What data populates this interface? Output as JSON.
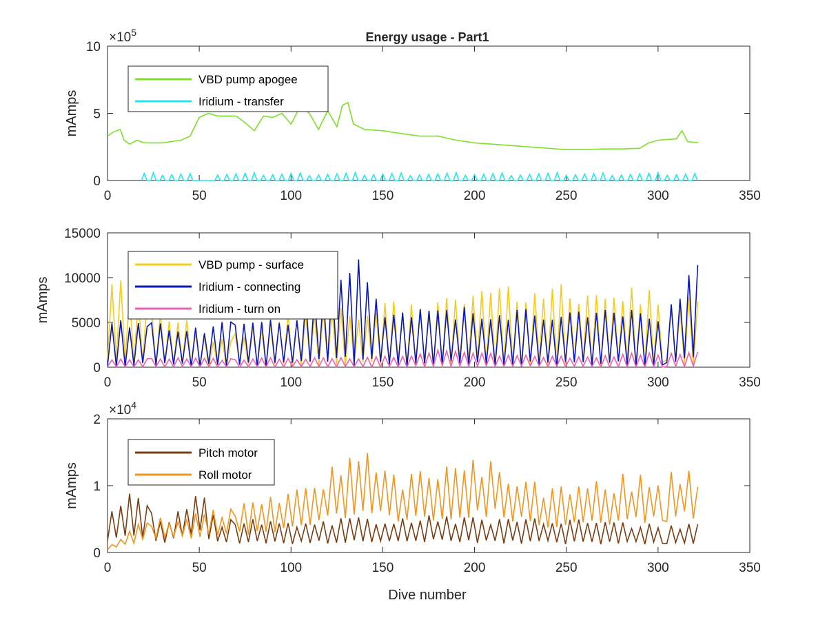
{
  "figure": {
    "title": "Energy usage - Part1",
    "xlabel": "Dive number"
  },
  "chart_data": [
    {
      "type": "line",
      "title": "Energy usage - Part1",
      "xlabel": "",
      "ylabel": "mAmps",
      "xlim": [
        0,
        350
      ],
      "ylim": [
        0,
        1000000
      ],
      "xticks": [
        "0",
        "50",
        "100",
        "150",
        "200",
        "250",
        "300",
        "350"
      ],
      "yticks": [
        "0",
        "5",
        "10"
      ],
      "exponent": "×10",
      "exponent_power": "5",
      "legend_position": "top-left",
      "series": [
        {
          "name": "VBD pump apogee",
          "color": "#7ee02a",
          "points": [
            [
              0,
              330000
            ],
            [
              3,
              360000
            ],
            [
              7,
              380000
            ],
            [
              9,
              300000
            ],
            [
              12,
              270000
            ],
            [
              16,
              300000
            ],
            [
              20,
              280000
            ],
            [
              30,
              280000
            ],
            [
              40,
              300000
            ],
            [
              45,
              330000
            ],
            [
              50,
              470000
            ],
            [
              55,
              500000
            ],
            [
              60,
              480000
            ],
            [
              65,
              480000
            ],
            [
              70,
              480000
            ],
            [
              75,
              430000
            ],
            [
              80,
              370000
            ],
            [
              85,
              480000
            ],
            [
              90,
              470000
            ],
            [
              95,
              500000
            ],
            [
              100,
              420000
            ],
            [
              105,
              550000
            ],
            [
              110,
              500000
            ],
            [
              115,
              380000
            ],
            [
              120,
              520000
            ],
            [
              125,
              400000
            ],
            [
              128,
              560000
            ],
            [
              131,
              580000
            ],
            [
              134,
              420000
            ],
            [
              140,
              380000
            ],
            [
              150,
              370000
            ],
            [
              160,
              350000
            ],
            [
              170,
              330000
            ],
            [
              180,
              330000
            ],
            [
              190,
              300000
            ],
            [
              200,
              280000
            ],
            [
              210,
              270000
            ],
            [
              220,
              260000
            ],
            [
              230,
              250000
            ],
            [
              240,
              240000
            ],
            [
              250,
              230000
            ],
            [
              260,
              230000
            ],
            [
              270,
              235000
            ],
            [
              280,
              235000
            ],
            [
              290,
              240000
            ],
            [
              295,
              280000
            ],
            [
              300,
              300000
            ],
            [
              310,
              310000
            ],
            [
              313,
              370000
            ],
            [
              316,
              290000
            ],
            [
              322,
              280000
            ]
          ]
        },
        {
          "name": "Iridium - transfer",
          "color": "#22e6f0",
          "points": [
            [
              0,
              0
            ],
            [
              5,
              40000
            ],
            [
              10,
              30000
            ],
            [
              15,
              10000
            ],
            [
              20,
              0
            ],
            [
              45,
              40000
            ],
            [
              60,
              0
            ],
            [
              120,
              60000
            ],
            [
              180,
              80000
            ],
            [
              250,
              70000
            ],
            [
              322,
              90000
            ]
          ],
          "spikes": {
            "from": 20,
            "to": 322,
            "step": 5,
            "gap": [
              46,
              60
            ],
            "amp": 60000
          }
        }
      ]
    },
    {
      "type": "line",
      "xlabel": "",
      "ylabel": "mAmps",
      "xlim": [
        0,
        350
      ],
      "ylim": [
        0,
        15000
      ],
      "xticks": [
        "0",
        "50",
        "100",
        "150",
        "200",
        "250",
        "300",
        "350"
      ],
      "yticks": [
        "0",
        "5000",
        "10000",
        "15000"
      ],
      "legend_position": "top-left",
      "series": [
        {
          "name": "VBD pump - surface",
          "color": "#f5cc1a",
          "envelope": [
            [
              0,
              11000
            ],
            [
              20,
              8000
            ],
            [
              50,
              4500
            ],
            [
              60,
              3000
            ],
            [
              100,
              6500
            ],
            [
              140,
              7000
            ],
            [
              180,
              8000
            ],
            [
              200,
              9500
            ],
            [
              250,
              9500
            ],
            [
              290,
              9000
            ],
            [
              322,
              8000
            ]
          ]
        },
        {
          "name": "Iridium - connecting",
          "color": "#0a18b8",
          "envelope": [
            [
              0,
              6000
            ],
            [
              20,
              5000
            ],
            [
              60,
              5000
            ],
            [
              100,
              6000
            ],
            [
              136,
              13800
            ],
            [
              150,
              6500
            ],
            [
              200,
              7000
            ],
            [
              250,
              6500
            ],
            [
              300,
              6500
            ],
            [
              322,
              13000
            ]
          ]
        },
        {
          "name": "Iridium - turn on",
          "color": "#ef5fb4",
          "envelope": [
            [
              0,
              1000
            ],
            [
              20,
              1100
            ],
            [
              60,
              1000
            ],
            [
              150,
              1200
            ],
            [
              180,
              2000
            ],
            [
              250,
              1200
            ],
            [
              322,
              2000
            ]
          ]
        }
      ]
    },
    {
      "type": "line",
      "xlabel": "Dive number",
      "ylabel": "mAmps",
      "xlim": [
        0,
        350
      ],
      "ylim": [
        0,
        20000
      ],
      "xticks": [
        "0",
        "50",
        "100",
        "150",
        "200",
        "250",
        "300",
        "350"
      ],
      "yticks": [
        "0",
        "1",
        "2"
      ],
      "exponent": "×10",
      "exponent_power": "4",
      "legend_position": "top-left",
      "series": [
        {
          "name": "Pitch motor",
          "color": "#7a3d12",
          "envelope": [
            [
              0,
              7000
            ],
            [
              15,
              9500
            ],
            [
              30,
              5000
            ],
            [
              50,
              9800
            ],
            [
              60,
              5000
            ],
            [
              100,
              5000
            ],
            [
              175,
              5800
            ],
            [
              250,
              5000
            ],
            [
              322,
              4500
            ]
          ]
        },
        {
          "name": "Roll motor",
          "color": "#f0961e",
          "envelope": [
            [
              0,
              1000
            ],
            [
              20,
              5000
            ],
            [
              50,
              6000
            ],
            [
              100,
              9000
            ],
            [
              137,
              16000
            ],
            [
              160,
              12000
            ],
            [
              210,
              15000
            ],
            [
              240,
              9500
            ],
            [
              320,
              14000
            ],
            [
              322,
              10000
            ]
          ]
        }
      ]
    }
  ]
}
